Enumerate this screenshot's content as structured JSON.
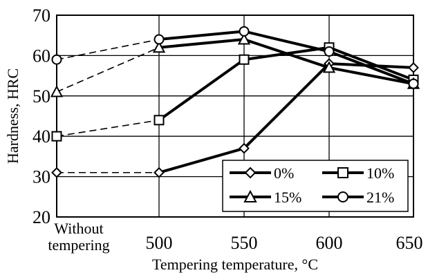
{
  "chart_data": {
    "type": "line",
    "title": "",
    "xlabel": "Tempering temperature, °C",
    "ylabel": "Hardness, HRC",
    "categories": [
      "Without tempering",
      "500",
      "550",
      "600",
      "650"
    ],
    "category_label_lines": [
      [
        "Without",
        "tempering"
      ],
      [
        "500"
      ],
      [
        "550"
      ],
      [
        "600"
      ],
      [
        "650"
      ]
    ],
    "ylim": [
      20,
      70
    ],
    "yticks": [
      "20",
      "30",
      "40",
      "50",
      "60",
      "70"
    ],
    "grid": true,
    "legend_position": "bottom-right",
    "dashed_segment": "Without tempering to 500",
    "series": [
      {
        "name": "0%",
        "marker": "diamond",
        "values": [
          31,
          31,
          37,
          58,
          57
        ]
      },
      {
        "name": "10%",
        "marker": "square",
        "values": [
          40,
          44,
          59,
          62,
          54
        ]
      },
      {
        "name": "15%",
        "marker": "triangle",
        "values": [
          51,
          62,
          64,
          57,
          53
        ]
      },
      {
        "name": "21%",
        "marker": "circle",
        "values": [
          59,
          64,
          66,
          61,
          53
        ]
      }
    ]
  },
  "colors": {
    "line": "#000000",
    "marker_fill": "#ffffff",
    "background": "#ffffff"
  }
}
